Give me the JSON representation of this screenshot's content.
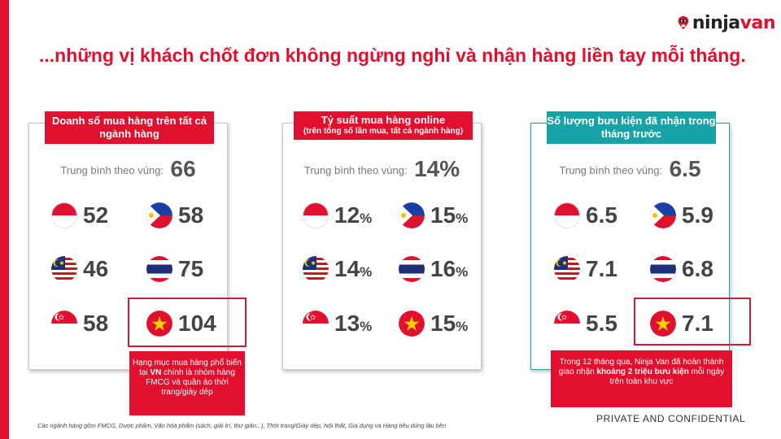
{
  "brand": {
    "logo_part1": "ninja",
    "logo_part2": "van",
    "accent": "#e0102e",
    "teal": "#17a2a8"
  },
  "title": "...những vị khách chốt đơn không ngừng nghỉ và nhận hàng liền tay mỗi tháng.",
  "panels": [
    {
      "header": "Doanh số mua hàng trên tất cả ngành hàng",
      "avg_label": "Trung bình theo vùng:",
      "avg_value": "66",
      "stats": {
        "indonesia": "52",
        "philippines": "58",
        "malaysia": "46",
        "thailand": "75",
        "singapore": "58",
        "vietnam": "104"
      },
      "note": {
        "text_1": "Hạng mục mua hàng phổ biến tại ",
        "bold": "VN",
        "text_2": " chính là nhóm hàng FMCG và quần áo thời trang/giày dép"
      }
    },
    {
      "header": "Tỷ suất mua hàng online",
      "header_sub": "(trên tổng số lần mua, tất cả ngành hàng)",
      "avg_label": "Trung bình theo vùng:",
      "avg_value": "14%",
      "percent_sign": "%",
      "stats": {
        "indonesia": "12",
        "philippines": "15",
        "malaysia": "14",
        "thailand": "16",
        "singapore": "13",
        "vietnam": "15"
      }
    },
    {
      "header": "Số lượng bưu kiện đã nhận trong tháng trước",
      "avg_label": "Trung bình theo vùng:",
      "avg_value": "6.5",
      "stats": {
        "indonesia": "6.5",
        "philippines": "5.9",
        "malaysia": "7.1",
        "thailand": "6.8",
        "singapore": "5.5",
        "vietnam": "7.1"
      },
      "note": {
        "text_1": "Trong 12 tháng qua, Ninja Van đã hoàn thành giao nhận ",
        "bold": "khoảng 2 triệu bưu kiện",
        "text_2": " mỗi ngày trên toàn khu vực"
      }
    }
  ],
  "footnote": "Các ngành hàng gồm FMCG, Dược phẩm, Văn hóa phẩm (sách, giải trí, thư giãn...), Thời trang/Giày dép, Nội thất, Gia dụng và Hàng tiêu dùng lâu bền",
  "confidential": "PRIVATE AND CONFIDENTIAL",
  "icons": {
    "indonesia": "indonesia-flag-icon",
    "philippines": "philippines-flag-icon",
    "malaysia": "malaysia-flag-icon",
    "thailand": "thailand-flag-icon",
    "singapore": "singapore-flag-icon",
    "vietnam": "vietnam-flag-icon"
  }
}
